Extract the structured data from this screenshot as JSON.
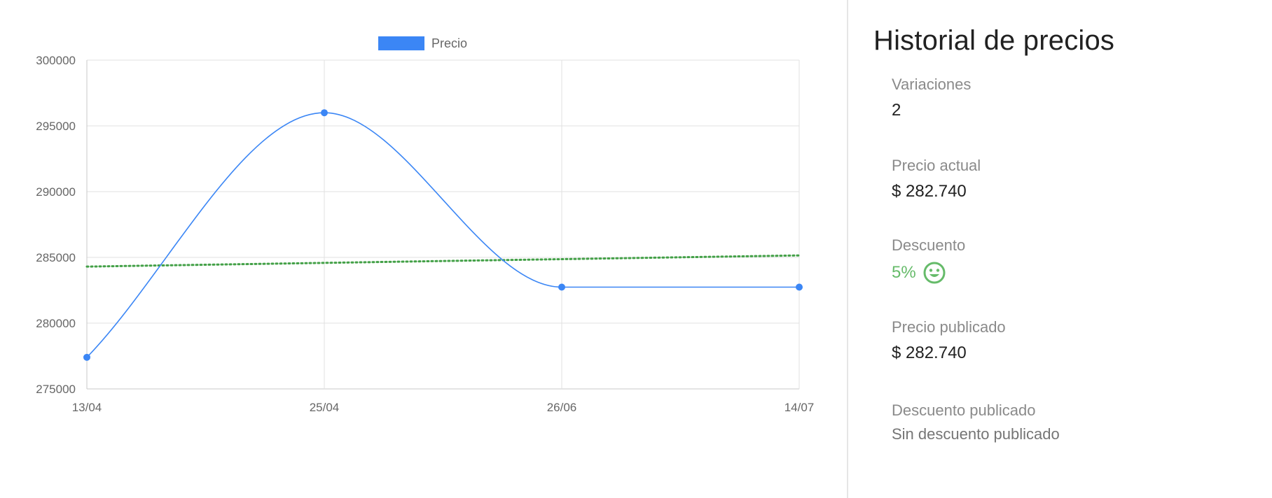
{
  "colors": {
    "series": "#3b86f5",
    "trend": "#43a047",
    "grid": "#e0e0e0",
    "green_text": "#66bb6a"
  },
  "chart_data": {
    "type": "line",
    "legend": {
      "label": "Precio",
      "position": "top"
    },
    "categories": [
      "13/04",
      "25/04",
      "26/06",
      "14/07"
    ],
    "series": [
      {
        "name": "Precio",
        "values": [
          277400,
          296000,
          282740,
          282740
        ]
      }
    ],
    "trendline": {
      "values": [
        284300,
        285150
      ]
    },
    "ylim": [
      275000,
      300000
    ],
    "yticks": [
      275000,
      280000,
      285000,
      290000,
      295000,
      300000
    ],
    "grid": true
  },
  "panel": {
    "title": "Historial de precios",
    "variaciones": {
      "label": "Variaciones",
      "value": "2"
    },
    "precio_actual": {
      "label": "Precio actual",
      "value": "$ 282.740"
    },
    "descuento": {
      "label": "Descuento",
      "value": "5%",
      "icon": "smile-icon"
    },
    "precio_publicado": {
      "label": "Precio publicado",
      "value": "$ 282.740"
    },
    "descuento_publicado": {
      "label": "Descuento publicado",
      "value": "Sin descuento publicado"
    }
  }
}
